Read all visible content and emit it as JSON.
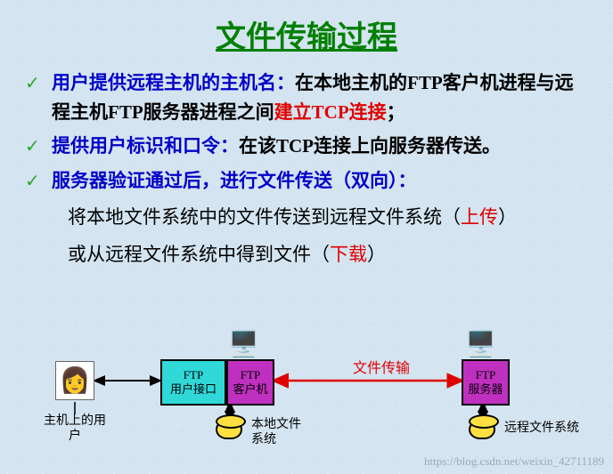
{
  "title": {
    "text": "文件传输过程",
    "color": "#008000",
    "fontsize": 34
  },
  "bullets": [
    {
      "lead": "用户提供远程主机的主机名：",
      "tail_black": "在本地主机的FTP客户机进程与远程主机FTP服务器进程之间",
      "tail_red": "建立TCP连接",
      "tail_end": "；"
    },
    {
      "lead": "提供用户标识和口令：",
      "tail_black": "在该TCP连接上向服务器传送。",
      "tail_red": "",
      "tail_end": ""
    },
    {
      "lead": "服务器验证通过后，进行文件传送（双向）：",
      "tail_black": "",
      "tail_red": "",
      "tail_end": ""
    }
  ],
  "subs": {
    "line1_a": "将本地文件系统中的文件传送到远程文件系统（",
    "line1_red": "上传",
    "line1_b": "）",
    "line2_a": "或从远程文件系统中得到文件（",
    "line2_red": "下载",
    "line2_b": "）"
  },
  "diagram": {
    "user_label": "主机上的用户",
    "ftp_ui_line1": "FTP",
    "ftp_ui_line2": "用户接口",
    "ftp_client_line1": "FTP",
    "ftp_client_line2": "客户机",
    "ftp_server_line1": "FTP",
    "ftp_server_line2": "服务器",
    "transfer_label": "文件传输",
    "local_fs": "本地文件系统",
    "remote_fs": "远程文件系统",
    "colors": {
      "ui_box": "#30d8d8",
      "client_box": "#c030c0",
      "server_box": "#c030c0",
      "disk": "#ffe040",
      "red_arrow": "#e00000"
    }
  },
  "watermark": "https://blog.csdn.net/weixin_42711189",
  "check_color": "#2aa82a"
}
